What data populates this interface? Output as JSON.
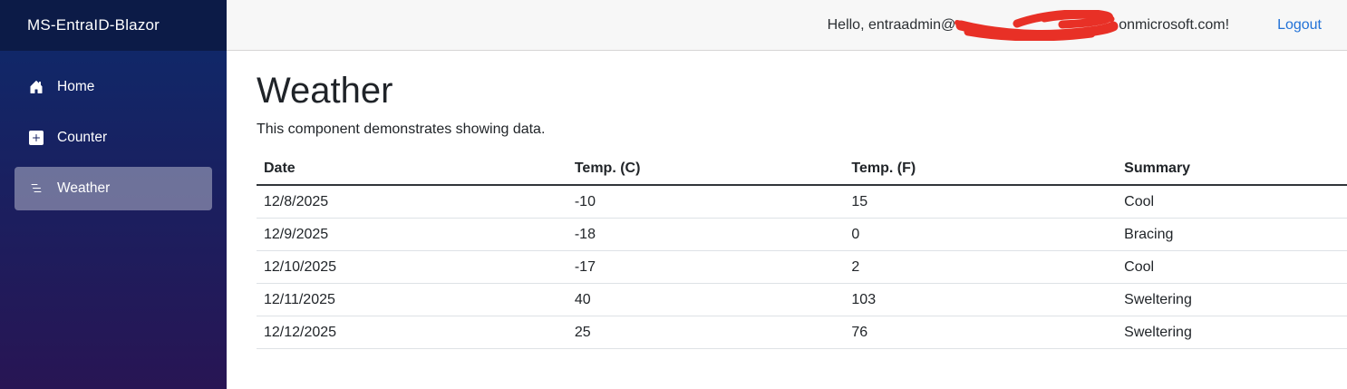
{
  "sidebar": {
    "brand": "MS-EntraID-Blazor",
    "items": [
      {
        "label": "Home",
        "icon": "house-icon",
        "active": false
      },
      {
        "label": "Counter",
        "icon": "plus-square-icon",
        "active": false
      },
      {
        "label": "Weather",
        "icon": "list-nested-icon",
        "active": true
      }
    ]
  },
  "topbar": {
    "greeting_prefix": "Hello, entraadmin@",
    "greeting_suffix": "onmicrosoft.com!",
    "redaction": "red-scribble-over-email-domain",
    "logout_label": "Logout"
  },
  "main": {
    "title": "Weather",
    "subtitle": "This component demonstrates showing data.",
    "table": {
      "headers": [
        "Date",
        "Temp. (C)",
        "Temp. (F)",
        "Summary"
      ],
      "rows": [
        [
          "12/8/2025",
          "-10",
          "15",
          "Cool"
        ],
        [
          "12/9/2025",
          "-18",
          "0",
          "Bracing"
        ],
        [
          "12/10/2025",
          "-17",
          "2",
          "Cool"
        ],
        [
          "12/11/2025",
          "40",
          "103",
          "Sweltering"
        ],
        [
          "12/12/2025",
          "25",
          "76",
          "Sweltering"
        ]
      ]
    }
  },
  "colors": {
    "sidebar_gradient_top": "#0d2a6b",
    "sidebar_gradient_bottom": "#281554",
    "brand_row_bg": "#0c1b47",
    "active_item_bg": "rgba(255,255,255,0.37)",
    "topbar_bg": "#f7f7f7",
    "topbar_border": "#d6d5d5",
    "link_blue": "#2272d7",
    "scribble_red": "#e8281e",
    "table_row_border": "#dee2e6",
    "table_header_border": "#31363a"
  }
}
